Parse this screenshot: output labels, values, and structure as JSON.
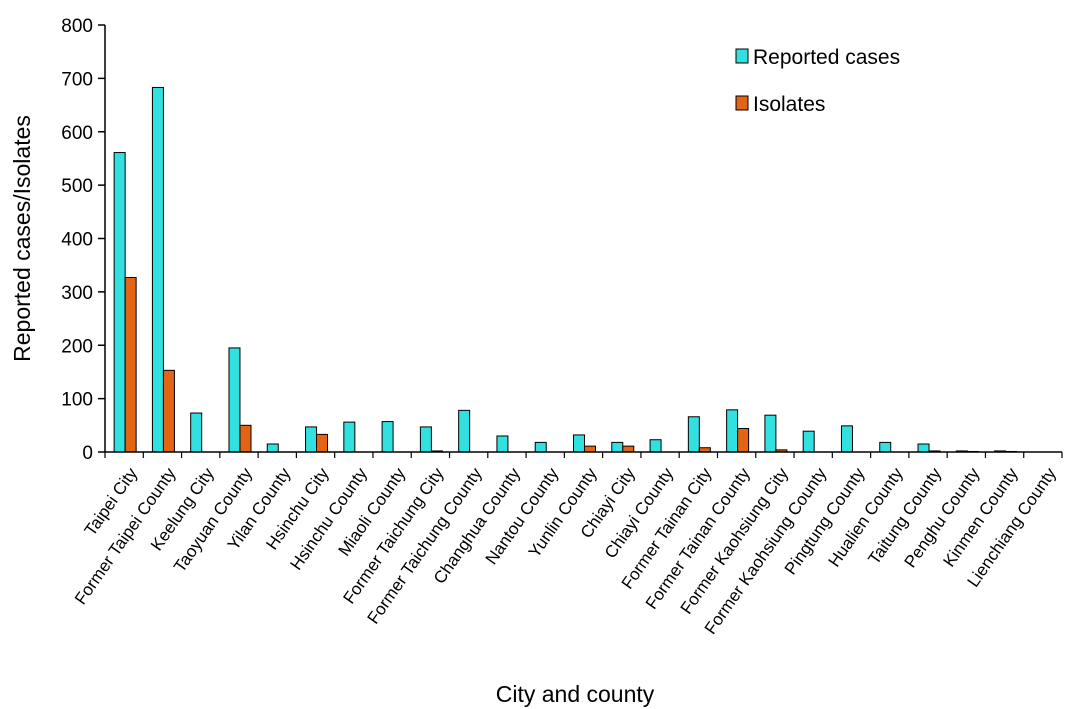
{
  "chart_data": {
    "type": "bar",
    "title": "",
    "xlabel": "City and county",
    "ylabel": "Reported cases/Isolates",
    "ylim": [
      0,
      800
    ],
    "yticks": [
      0,
      100,
      200,
      300,
      400,
      500,
      600,
      700,
      800
    ],
    "grid": false,
    "legend_position": "top-right",
    "categories": [
      "Taipei City",
      "Former Taipei County",
      "Keelung City",
      "Taoyuan County",
      "Yilan County",
      "Hsinchu City",
      "Hsinchu County",
      "Miaoli County",
      "Former Taichung City",
      "Former Taichung County",
      "Changhua County",
      "Nantou County",
      "Yunlin County",
      "Chiayi City",
      "Chiayi County",
      "Former Tainan City",
      "Former Tainan County",
      "Former Kaohsiung City",
      "Former Kaohsiung County",
      "Pingtung County",
      "Hualien County",
      "Taitung County",
      "Penghu County",
      "Kinmen County",
      "Lienchiang County"
    ],
    "series": [
      {
        "name": "Reported cases",
        "color": "#33e0e0",
        "values": [
          561,
          683,
          73,
          195,
          15,
          47,
          56,
          57,
          47,
          78,
          30,
          18,
          32,
          18,
          23,
          66,
          79,
          69,
          39,
          49,
          18,
          15,
          2,
          2,
          0
        ]
      },
      {
        "name": "Isolates",
        "color": "#e36414",
        "values": [
          327,
          153,
          0,
          50,
          0,
          33,
          0,
          0,
          2,
          0,
          0,
          0,
          11,
          11,
          0,
          8,
          44,
          4,
          0,
          0,
          0,
          2,
          1,
          1,
          0
        ]
      }
    ]
  }
}
